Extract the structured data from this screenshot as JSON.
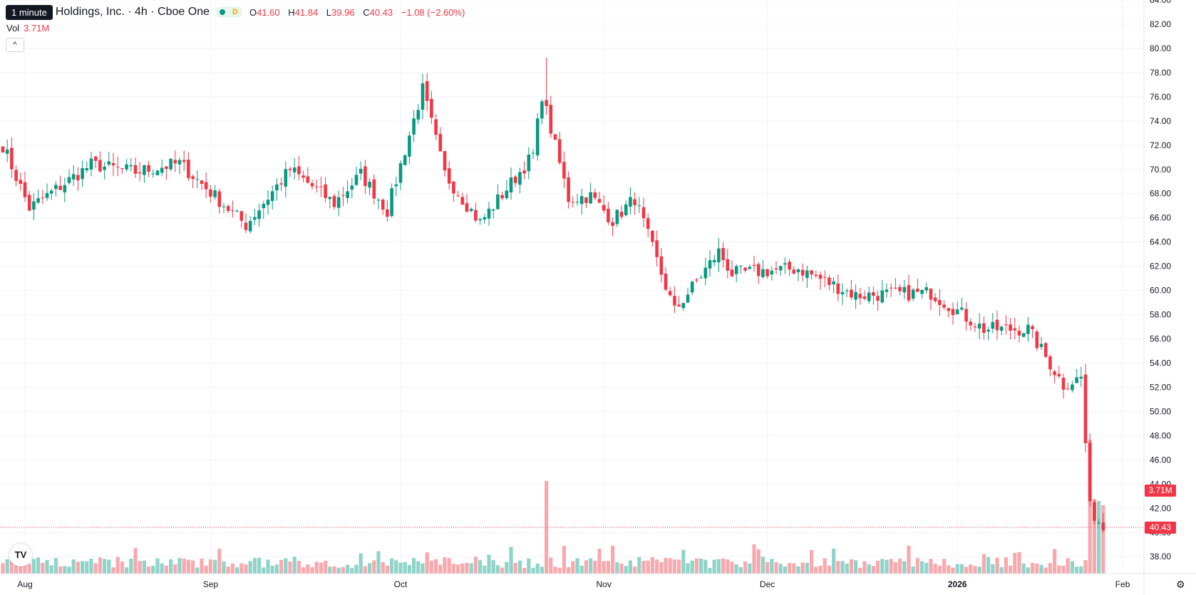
{
  "header": {
    "tooltip": "1 minute",
    "title": "Holdings, Inc. · 4h · Cboe One",
    "badge_label": "D",
    "ohlc": {
      "o_label": "O",
      "o": "41.60",
      "h_label": "H",
      "h": "41.84",
      "l_label": "L",
      "l": "39.96",
      "c_label": "C",
      "c": "40.43",
      "change": "−1.08 (−2.60%)"
    },
    "vol_label": "Vol",
    "vol_value": "3.71M"
  },
  "collapse_glyph": "^",
  "logo_text": "TV",
  "colors": {
    "up": "#089981",
    "down": "#f23645",
    "up_vol": "#8fd3c9",
    "down_vol": "#f7a9ad",
    "grid": "#f0f3fa"
  },
  "chart_data": {
    "type": "candlestick",
    "y_range": [
      36.6,
      84.0
    ],
    "y_ticks": [
      "38.00",
      "40.00",
      "42.00",
      "44.00",
      "46.00",
      "48.00",
      "50.00",
      "52.00",
      "54.00",
      "56.00",
      "58.00",
      "60.00",
      "62.00",
      "64.00",
      "66.00",
      "68.00",
      "70.00",
      "72.00",
      "74.00",
      "76.00",
      "78.00",
      "80.00",
      "82.00",
      "84.00"
    ],
    "x_labels": [
      "Aug",
      "Sep",
      "Oct",
      "Nov",
      "Dec",
      "2026",
      "Feb"
    ],
    "last_price_label": "40.43",
    "last_volume_label": "3.71M",
    "bars": 250,
    "close_path_anchors": [
      {
        "bar": 0,
        "close": 72.0
      },
      {
        "bar": 6,
        "close": 66.8
      },
      {
        "bar": 20,
        "close": 70.4
      },
      {
        "bar": 30,
        "close": 69.8
      },
      {
        "bar": 40,
        "close": 70.5
      },
      {
        "bar": 55,
        "close": 65.4
      },
      {
        "bar": 65,
        "close": 70.0
      },
      {
        "bar": 75,
        "close": 67.2
      },
      {
        "bar": 81,
        "close": 69.6
      },
      {
        "bar": 87,
        "close": 66.6
      },
      {
        "bar": 95,
        "close": 76.6
      },
      {
        "bar": 100,
        "close": 69.6
      },
      {
        "bar": 108,
        "close": 65.6
      },
      {
        "bar": 120,
        "close": 71.2
      },
      {
        "bar": 122,
        "close": 76.2
      },
      {
        "bar": 128,
        "close": 67.6
      },
      {
        "bar": 133,
        "close": 67.8
      },
      {
        "bar": 138,
        "close": 65.8
      },
      {
        "bar": 143,
        "close": 67.6
      },
      {
        "bar": 152,
        "close": 58.3
      },
      {
        "bar": 162,
        "close": 63.2
      },
      {
        "bar": 165,
        "close": 61.4
      },
      {
        "bar": 180,
        "close": 61.8
      },
      {
        "bar": 193,
        "close": 59.6
      },
      {
        "bar": 210,
        "close": 59.8
      },
      {
        "bar": 222,
        "close": 56.8
      },
      {
        "bar": 232,
        "close": 56.8
      },
      {
        "bar": 240,
        "close": 52.2
      },
      {
        "bar": 244,
        "close": 52.8
      },
      {
        "bar": 246,
        "close": 42.0
      },
      {
        "bar": 249,
        "close": 40.4
      }
    ]
  }
}
